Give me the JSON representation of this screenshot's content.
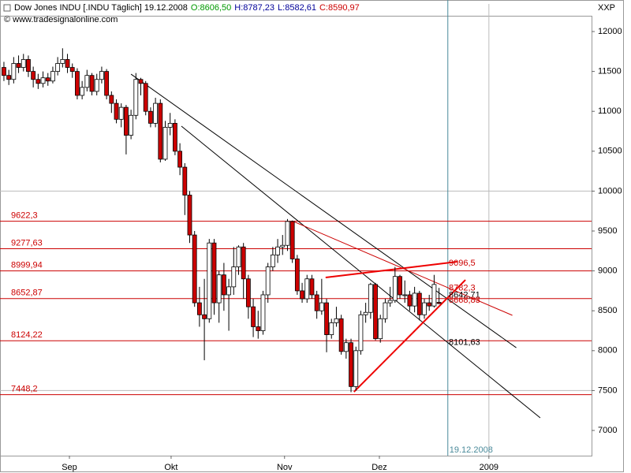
{
  "chart_data": {
    "type": "candlestick",
    "title": "Dow Jones INDU [.INDU Täglich] 19.12.2008",
    "ohlc_labels": [
      {
        "label": "O:8606,50",
        "color": "#009900"
      },
      {
        "label": "H:8787,23",
        "color": "#000099"
      },
      {
        "label": "L:8582,61",
        "color": "#000099"
      },
      {
        "label": "C:8590,97",
        "color": "#cc0000"
      }
    ],
    "subtitle": "© www.tradesignalonline.com",
    "y_axis_label": "XXP",
    "up_color": "#ffffff",
    "down_color": "#cc0000",
    "x": [
      0,
      1,
      2,
      3,
      4,
      5,
      6,
      7,
      8,
      9,
      10,
      11,
      12,
      13,
      14,
      15,
      16,
      17,
      18,
      19,
      20,
      21,
      22,
      23,
      24,
      25,
      26,
      27,
      28,
      29,
      30,
      31,
      32,
      33,
      34,
      35,
      36,
      37,
      38,
      39,
      40,
      41,
      42,
      43,
      44,
      45,
      46,
      47,
      48,
      49,
      50,
      51,
      52,
      53,
      54,
      55,
      56,
      57,
      58,
      59,
      60,
      61,
      62,
      63,
      64,
      65,
      66,
      67,
      68,
      69,
      70,
      71,
      72,
      73,
      74,
      75,
      76,
      77,
      78,
      79,
      80,
      81,
      82,
      83,
      84,
      85,
      86,
      87,
      88,
      89
    ],
    "open": [
      11550,
      11450,
      11400,
      11600,
      11550,
      11650,
      11500,
      11400,
      11350,
      11420,
      11380,
      11500,
      11600,
      11650,
      11550,
      11500,
      11200,
      11300,
      11450,
      11250,
      11400,
      11500,
      11200,
      11100,
      10900,
      11050,
      10700,
      10950,
      11400,
      11350,
      11000,
      10850,
      11100,
      10400,
      10800,
      10850,
      10500,
      10300,
      9950,
      9450,
      8600,
      8450,
      8400,
      9350,
      8600,
      8950,
      8700,
      8800,
      9050,
      9300,
      8900,
      8550,
      8300,
      8250,
      8700,
      9050,
      9200,
      9300,
      9320,
      9620,
      9150,
      8750,
      8650,
      8900,
      8700,
      8500,
      8600,
      8200,
      8350,
      8400,
      7990,
      8100,
      7550,
      8000,
      8450,
      8480,
      8830,
      8150,
      8400,
      8600,
      8630,
      8930,
      8700,
      8700,
      8560,
      8720,
      8450,
      8600,
      8560,
      8606
    ],
    "high": [
      11620,
      11520,
      11680,
      11700,
      11720,
      11700,
      11560,
      11470,
      11500,
      11480,
      11560,
      11680,
      11790,
      11720,
      11600,
      11540,
      11380,
      11520,
      11480,
      11470,
      11560,
      11530,
      11250,
      11150,
      11100,
      11080,
      11020,
      11480,
      11420,
      11380,
      11050,
      11170,
      11150,
      10880,
      10980,
      10900,
      10600,
      10350,
      10000,
      9500,
      8800,
      8900,
      9400,
      9400,
      9000,
      9100,
      8900,
      9300,
      9320,
      9350,
      8950,
      8650,
      8500,
      8750,
      9100,
      9300,
      9400,
      9450,
      9650,
      9630,
      9200,
      8850,
      8950,
      8950,
      8750,
      8900,
      8650,
      8400,
      8550,
      8450,
      8150,
      8150,
      8050,
      8500,
      8600,
      8850,
      8850,
      8450,
      8650,
      8800,
      9050,
      8950,
      8880,
      8750,
      8800,
      8750,
      8650,
      8700,
      8950,
      8787
    ],
    "low": [
      11380,
      11330,
      11350,
      11480,
      11500,
      11430,
      11300,
      11280,
      11300,
      11320,
      11350,
      11450,
      11550,
      11480,
      11420,
      11150,
      11150,
      11250,
      11200,
      11200,
      11350,
      11150,
      10980,
      10850,
      10800,
      10460,
      10650,
      10900,
      11200,
      10950,
      10800,
      10800,
      10360,
      10380,
      10700,
      10450,
      10200,
      9700,
      9350,
      8550,
      8300,
      7880,
      8350,
      8450,
      8350,
      8500,
      8250,
      8700,
      8950,
      8650,
      8400,
      8170,
      8150,
      8200,
      8600,
      9000,
      9100,
      9200,
      9250,
      9100,
      8700,
      8600,
      8600,
      8650,
      8400,
      8450,
      7980,
      8150,
      8300,
      7950,
      7900,
      7480,
      7500,
      7950,
      8350,
      8400,
      8130,
      8100,
      8350,
      8550,
      8600,
      8650,
      8600,
      8500,
      8480,
      8380,
      8400,
      8500,
      8540,
      8583
    ],
    "close": [
      11450,
      11400,
      11600,
      11550,
      11650,
      11500,
      11400,
      11350,
      11420,
      11380,
      11500,
      11600,
      11650,
      11550,
      11500,
      11200,
      11300,
      11450,
      11250,
      11400,
      11500,
      11200,
      11100,
      10900,
      11050,
      10700,
      10950,
      11400,
      11350,
      11000,
      10850,
      11100,
      10400,
      10800,
      10850,
      10500,
      10300,
      9950,
      9450,
      8600,
      8450,
      8400,
      9350,
      8600,
      8950,
      8700,
      8800,
      9050,
      9300,
      8900,
      8550,
      8300,
      8250,
      8700,
      9050,
      9200,
      9300,
      9320,
      9620,
      9150,
      8750,
      8650,
      8900,
      8700,
      8500,
      8600,
      8200,
      8350,
      8400,
      7990,
      8100,
      7550,
      8000,
      8450,
      8480,
      8830,
      8150,
      8400,
      8600,
      8630,
      8930,
      8700,
      8700,
      8560,
      8720,
      8450,
      8600,
      8560,
      8830,
      8591
    ],
    "xlim": [
      -0.8,
      120.2
    ],
    "ylim": [
      6684,
      12346
    ],
    "xticks": [
      {
        "value": 13.4,
        "label": "Sep"
      },
      {
        "value": 34.2,
        "label": "Okt"
      },
      {
        "value": 57.4,
        "label": "Nov"
      },
      {
        "value": 76.8,
        "label": "Dez"
      },
      {
        "value": 99.2,
        "label": "2009"
      }
    ],
    "yticks": [
      7000,
      7500,
      8000,
      8500,
      9000,
      9500,
      10000,
      10500,
      11000,
      11500,
      12000
    ],
    "grid_values": [
      10000,
      7500
    ],
    "levels": [
      {
        "value": 9622.3,
        "label": "9622,3"
      },
      {
        "value": 9277.63,
        "label": "9277,63"
      },
      {
        "value": 8999.94,
        "label": "8999,94"
      },
      {
        "value": 8652.87,
        "label": "8652,87"
      },
      {
        "value": 8124.22,
        "label": "8124,22"
      },
      {
        "value": 7448.2,
        "label": "7448,2"
      }
    ],
    "level_color": "#cc0000",
    "lines": [
      {
        "x": [
          26,
          104.8
        ],
        "y": [
          11466,
          8037
        ],
        "color": "#000000",
        "width": 1
      },
      {
        "x": [
          36.3,
          109.7
        ],
        "y": [
          10814,
          7158
        ],
        "color": "#000000",
        "width": 1
      },
      {
        "x": [
          58.9,
          104
        ],
        "y": [
          9628,
          8443
        ],
        "color": "#cc0000",
        "width": 1
      },
      {
        "x": [
          65.8,
          92.7
        ],
        "y": [
          8917,
          9115
        ],
        "color": "#ee0000",
        "width": 2
      },
      {
        "x": [
          71.6,
          94.4
        ],
        "y": [
          7484,
          8887
        ],
        "color": "#ee0000",
        "width": 2
      }
    ],
    "annotations": [
      {
        "x": 91,
        "value": 9096.5,
        "label": "9096,5",
        "color": "#cc0000"
      },
      {
        "x": 91,
        "value": 8782.3,
        "label": "8782,3",
        "color": "#cc0000"
      },
      {
        "x": 91,
        "value": 8642.71,
        "label": "8642,71",
        "color": "#000000"
      },
      {
        "x": 91,
        "value": 8668.83,
        "label": "8668,83",
        "color": "#cc0000"
      },
      {
        "x": 91,
        "value": 8101.63,
        "label": "8101,63",
        "color": "#000000"
      }
    ],
    "marker": {
      "x": 90.8,
      "label": "19.12.2008",
      "color": "#4a8a9a"
    },
    "vline": {
      "x": 99.2,
      "color": "#bbbbbb"
    }
  }
}
